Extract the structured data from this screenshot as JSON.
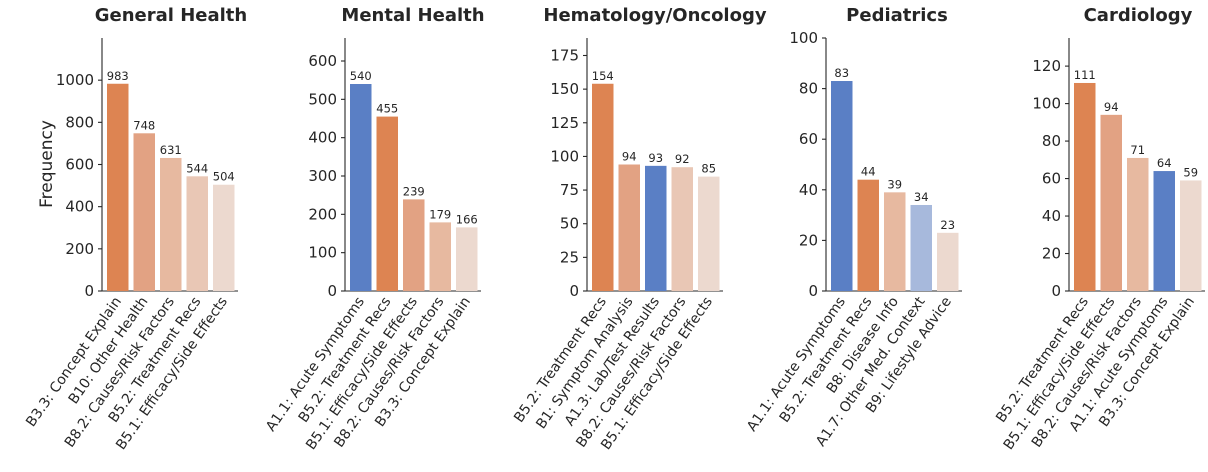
{
  "figure": {
    "ylabel": "Frequency"
  },
  "palette": {
    "orange": "#DD8452",
    "orange2": "#E2A283",
    "orange3": "#E7B9A0",
    "orange4": "#E9C7B5",
    "orange5": "#ECD9CF",
    "blue": "#5A7FC5",
    "blue_light": "#A7B9DC"
  },
  "chart_data": [
    {
      "type": "bar",
      "title": "General Health",
      "ylabel": "Frequency",
      "ylim": [
        0,
        1200
      ],
      "yticks": [
        0,
        200,
        400,
        600,
        800,
        1000
      ],
      "categories": [
        "B3.3: Concept Explain",
        "B10: Other Health",
        "B8.2: Causes/Risk Factors",
        "B5.2: Treatment Recs",
        "B5.1: Efficacy/Side Effects"
      ],
      "values": [
        983,
        748,
        631,
        544,
        504
      ],
      "colors": [
        "#DD8452",
        "#E2A283",
        "#E7B9A0",
        "#E9C7B5",
        "#ECD9CF"
      ]
    },
    {
      "type": "bar",
      "title": "Mental Health",
      "ylim": [
        0,
        660
      ],
      "yticks": [
        0,
        100,
        200,
        300,
        400,
        500,
        600
      ],
      "categories": [
        "A1.1: Acute Symptoms",
        "B5.2: Treatment Recs",
        "B5.1: Efficacy/Side Effects",
        "B8.2: Causes/Risk Factors",
        "B3.3: Concept Explain"
      ],
      "values": [
        540,
        455,
        239,
        179,
        166
      ],
      "colors": [
        "#5A7FC5",
        "#DD8452",
        "#E2A283",
        "#E7B9A0",
        "#ECD9CF"
      ]
    },
    {
      "type": "bar",
      "title": "Hematology/Oncology",
      "ylim": [
        0,
        188
      ],
      "yticks": [
        0,
        25,
        50,
        75,
        100,
        125,
        150,
        175
      ],
      "categories": [
        "B5.2: Treatment Recs",
        "B1: Symptom Analysis",
        "A1.3: Lab/Test Results",
        "B8.2: Causes/Risk Factors",
        "B5.1: Efficacy/Side Effects"
      ],
      "values": [
        154,
        94,
        93,
        92,
        85
      ],
      "colors": [
        "#DD8452",
        "#E2A283",
        "#5A7FC5",
        "#E9C7B5",
        "#ECD9CF"
      ]
    },
    {
      "type": "bar",
      "title": "Pediatrics",
      "ylim": [
        0,
        100
      ],
      "yticks": [
        0,
        20,
        40,
        60,
        80,
        100
      ],
      "categories": [
        "A1.1: Acute Symptoms",
        "B5.2: Treatment Recs",
        "B8: Disease Info",
        "A1.7: Other Med. Context",
        "B9: Lifestyle Advice"
      ],
      "values": [
        83,
        44,
        39,
        34,
        23
      ],
      "colors": [
        "#5A7FC5",
        "#DD8452",
        "#E7B9A0",
        "#A7B9DC",
        "#ECD9CF"
      ]
    },
    {
      "type": "bar",
      "title": "Cardiology",
      "ylim": [
        0,
        135
      ],
      "yticks": [
        0,
        20,
        40,
        60,
        80,
        100,
        120
      ],
      "categories": [
        "B5.2: Treatment Recs",
        "B5.1: Efficacy/Side Effects",
        "B8.2: Causes/Risk Factors",
        "A1.1: Acute Symptoms",
        "B3.3: Concept Explain"
      ],
      "values": [
        111,
        94,
        71,
        64,
        59
      ],
      "colors": [
        "#DD8452",
        "#E2A283",
        "#E7B9A0",
        "#5A7FC5",
        "#ECD9CF"
      ]
    }
  ]
}
